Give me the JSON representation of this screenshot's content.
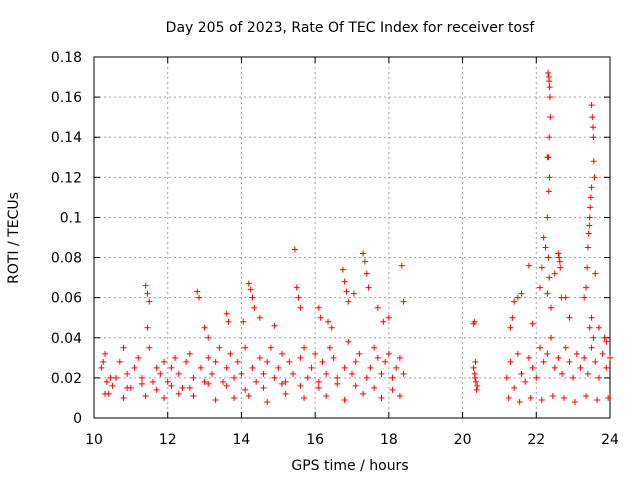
{
  "chart_data": {
    "type": "scatter",
    "title": "Day 205 of 2023, Rate Of TEC Index for receiver tosf",
    "xlabel": "GPS time / hours",
    "ylabel": "ROTI / TECUs",
    "xlim": [
      10,
      24
    ],
    "ylim": [
      0,
      0.18
    ],
    "xticks": [
      10,
      12,
      14,
      16,
      18,
      20,
      22,
      24
    ],
    "xtick_labels": [
      "10",
      "12",
      "14",
      "16",
      "18",
      "20",
      "22",
      "24"
    ],
    "yticks": [
      0,
      0.02,
      0.04,
      0.06,
      0.08,
      0.1,
      0.12,
      0.14,
      0.16,
      0.18
    ],
    "ytick_labels": [
      "0",
      "0.02",
      "0.04",
      "0.06",
      "0.08",
      "0.1",
      "0.12",
      "0.14",
      "0.16",
      "0.18"
    ],
    "grid": true,
    "marker": "+",
    "marker_color": "#ff0000",
    "series": [
      {
        "name": "ROTI",
        "x": [
          10.2,
          10.25,
          10.3,
          10.35,
          10.4,
          10.45,
          10.6,
          10.7,
          10.8,
          10.9,
          11.0,
          11.1,
          11.2,
          11.3,
          11.5,
          11.6,
          11.7,
          11.8,
          11.9,
          12.0,
          12.1,
          12.2,
          12.3,
          12.4,
          12.5,
          12.6,
          12.7,
          12.9,
          13.0,
          13.1,
          13.2,
          13.3,
          13.4,
          13.5,
          13.6,
          13.7,
          13.8,
          13.9,
          14.0,
          14.1,
          14.3,
          14.4,
          14.5,
          14.6,
          14.7,
          14.8,
          14.9,
          15.0,
          15.1,
          15.2,
          15.3,
          15.4,
          15.6,
          15.7,
          15.8,
          15.9,
          16.0,
          16.1,
          16.2,
          16.3,
          16.4,
          16.5,
          16.6,
          16.8,
          16.9,
          17.0,
          17.1,
          17.2,
          17.4,
          17.5,
          17.6,
          17.7,
          17.8,
          17.9,
          18.0,
          18.1,
          18.2,
          18.3,
          18.4,
          10.3,
          10.8,
          11.4,
          11.9,
          12.3,
          12.7,
          13.3,
          13.8,
          14.2,
          14.7,
          15.2,
          15.7,
          16.3,
          16.8,
          17.3,
          17.8,
          18.3,
          10.5,
          10.9,
          11.3,
          11.7,
          12.1,
          12.6,
          13.1,
          13.6,
          14.1,
          14.6,
          15.1,
          15.6,
          16.1,
          16.6,
          17.1,
          17.6,
          18.1,
          11.4,
          11.45,
          11.5,
          11.45,
          12.8,
          12.85,
          13.0,
          13.1,
          13.6,
          13.65,
          14.2,
          14.25,
          14.3,
          14.35,
          14.05,
          14.5,
          14.9,
          15.45,
          15.5,
          15.55,
          15.6,
          16.1,
          16.15,
          16.35,
          16.45,
          16.75,
          16.8,
          16.85,
          16.9,
          17.05,
          17.3,
          17.35,
          17.4,
          17.45,
          17.7,
          17.85,
          18.0,
          18.35,
          18.4,
          20.3,
          20.32,
          20.35,
          20.3,
          20.33,
          20.34,
          20.36,
          20.4,
          20.38,
          21.2,
          21.3,
          21.4,
          21.5,
          21.6,
          21.7,
          21.8,
          21.9,
          22.0,
          22.1,
          22.2,
          22.3,
          22.4,
          22.5,
          22.6,
          22.7,
          22.8,
          22.9,
          23.0,
          23.1,
          23.2,
          23.3,
          23.4,
          23.5,
          23.6,
          23.7,
          23.8,
          23.9,
          24.0,
          21.25,
          21.55,
          21.85,
          22.15,
          22.45,
          22.75,
          23.05,
          23.35,
          23.65,
          23.95,
          21.3,
          21.35,
          21.4,
          21.5,
          21.8,
          22.15,
          22.2,
          22.1,
          22.25,
          22.3,
          22.32,
          22.34,
          22.35,
          22.36,
          22.37,
          22.38,
          22.35,
          22.33,
          22.36,
          22.34,
          22.3,
          22.33,
          22.35,
          22.3,
          22.4,
          22.6,
          22.62,
          22.64,
          22.65,
          22.5,
          22.68,
          22.8,
          22.9,
          23.3,
          23.35,
          23.38,
          23.4,
          23.42,
          23.44,
          23.45,
          23.46,
          23.48,
          23.5,
          23.5,
          23.52,
          23.54,
          23.55,
          23.56,
          23.58,
          23.6,
          23.45,
          23.5,
          23.55,
          23.7,
          23.85,
          23.9,
          21.6,
          21.9
        ],
        "y": [
          0.025,
          0.028,
          0.032,
          0.018,
          0.012,
          0.02,
          0.02,
          0.028,
          0.035,
          0.022,
          0.015,
          0.025,
          0.03,
          0.02,
          0.035,
          0.018,
          0.025,
          0.022,
          0.028,
          0.018,
          0.025,
          0.03,
          0.022,
          0.015,
          0.028,
          0.032,
          0.02,
          0.025,
          0.018,
          0.03,
          0.022,
          0.028,
          0.035,
          0.018,
          0.025,
          0.032,
          0.02,
          0.028,
          0.022,
          0.035,
          0.025,
          0.018,
          0.03,
          0.022,
          0.028,
          0.035,
          0.02,
          0.025,
          0.032,
          0.018,
          0.028,
          0.022,
          0.03,
          0.035,
          0.02,
          0.025,
          0.032,
          0.018,
          0.028,
          0.022,
          0.035,
          0.03,
          0.02,
          0.025,
          0.038,
          0.022,
          0.028,
          0.032,
          0.02,
          0.025,
          0.035,
          0.03,
          0.022,
          0.028,
          0.032,
          0.02,
          0.025,
          0.03,
          0.022,
          0.012,
          0.01,
          0.011,
          0.01,
          0.012,
          0.011,
          0.009,
          0.01,
          0.011,
          0.008,
          0.012,
          0.01,
          0.011,
          0.009,
          0.012,
          0.01,
          0.011,
          0.016,
          0.015,
          0.017,
          0.014,
          0.016,
          0.015,
          0.017,
          0.016,
          0.014,
          0.015,
          0.017,
          0.016,
          0.015,
          0.017,
          0.016,
          0.015,
          0.014,
          0.066,
          0.062,
          0.058,
          0.045,
          0.063,
          0.06,
          0.045,
          0.04,
          0.052,
          0.048,
          0.067,
          0.064,
          0.06,
          0.055,
          0.048,
          0.05,
          0.046,
          0.084,
          0.065,
          0.06,
          0.055,
          0.055,
          0.05,
          0.048,
          0.045,
          0.074,
          0.068,
          0.063,
          0.058,
          0.062,
          0.082,
          0.078,
          0.072,
          0.065,
          0.055,
          0.048,
          0.05,
          0.076,
          0.058,
          0.047,
          0.048,
          0.028,
          0.025,
          0.022,
          0.02,
          0.018,
          0.016,
          0.014,
          0.02,
          0.028,
          0.015,
          0.032,
          0.022,
          0.018,
          0.03,
          0.025,
          0.02,
          0.035,
          0.028,
          0.032,
          0.04,
          0.025,
          0.03,
          0.022,
          0.035,
          0.028,
          0.02,
          0.032,
          0.025,
          0.03,
          0.022,
          0.035,
          0.028,
          0.02,
          0.032,
          0.025,
          0.03,
          0.01,
          0.008,
          0.01,
          0.009,
          0.011,
          0.01,
          0.008,
          0.011,
          0.009,
          0.01,
          0.045,
          0.05,
          0.058,
          0.06,
          0.076,
          0.075,
          0.09,
          0.065,
          0.085,
          0.13,
          0.172,
          0.17,
          0.168,
          0.165,
          0.16,
          0.15,
          0.14,
          0.13,
          0.12,
          0.113,
          0.1,
          0.08,
          0.07,
          0.062,
          0.055,
          0.082,
          0.08,
          0.078,
          0.075,
          0.072,
          0.06,
          0.06,
          0.05,
          0.06,
          0.065,
          0.075,
          0.085,
          0.092,
          0.096,
          0.1,
          0.105,
          0.11,
          0.115,
          0.156,
          0.15,
          0.145,
          0.14,
          0.128,
          0.12,
          0.072,
          0.045,
          0.05,
          0.04,
          0.045,
          0.04,
          0.038,
          0.062,
          0.047
        ]
      }
    ]
  }
}
